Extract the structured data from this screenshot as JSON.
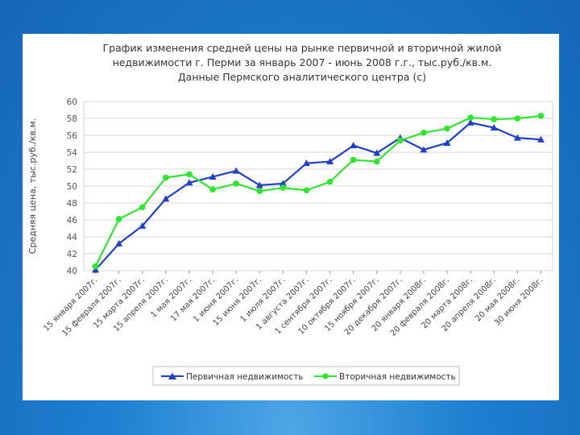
{
  "colors": {
    "background": "#1e7fd0",
    "panel": "#ffffff",
    "grid": "#d9d9d9",
    "primary_series": "#1f3fcc",
    "secondary_series": "#2ee82e"
  },
  "chart_data": {
    "type": "line",
    "title_lines": [
      "График изменения средней цены на рынке первичной и вторичной жилой",
      "недвижимости г. Перми за январь 2007 - июнь 2008 г.г., тыс.руб./кв.м.",
      "Данные Пермского аналитического центра (с)"
    ],
    "ylabel": "Средняя цена, тыс.руб./кв.м.",
    "xlabel": "",
    "ylim": [
      40,
      60
    ],
    "yticks": [
      "40",
      "42",
      "44",
      "46",
      "48",
      "50",
      "52",
      "54",
      "56",
      "58",
      "60"
    ],
    "grid": true,
    "legend_position": "bottom",
    "categories": [
      "15 января 2007г.",
      "15 февраля 2007г.",
      "15 марта 2007г.",
      "15 апреля 2007г.",
      "1 мая 2007г.",
      "17 мая 2007г.",
      "1 июня 2007г.",
      "15 июня 2007г.",
      "1 июля 2007г.",
      "1 августа 2007г.",
      "1 сентября 2007г.",
      "10 октября 2007г.",
      "15 ноября 2007г.",
      "20 декабря 2007г.",
      "20 января 2008г.",
      "20 февраля 2008г.",
      "20 марта 2008г.",
      "20 апреля 2008г.",
      "20 мая 2008г.",
      "30 июня 2008г."
    ],
    "series": [
      {
        "name": "Первичная недвижимость",
        "marker": "triangle",
        "values": [
          40.1,
          43.2,
          45.3,
          48.5,
          50.4,
          51.1,
          51.8,
          50.1,
          50.3,
          52.7,
          52.9,
          54.8,
          53.9,
          55.7,
          54.3,
          55.1,
          57.5,
          56.9,
          55.7,
          55.5
        ]
      },
      {
        "name": "Вторичная недвижимость",
        "marker": "circle",
        "values": [
          40.5,
          46.1,
          47.5,
          51.0,
          51.4,
          49.6,
          50.3,
          49.4,
          49.8,
          49.5,
          50.5,
          53.1,
          52.9,
          55.4,
          56.3,
          56.8,
          58.1,
          57.9,
          58.0,
          58.3
        ]
      }
    ]
  }
}
